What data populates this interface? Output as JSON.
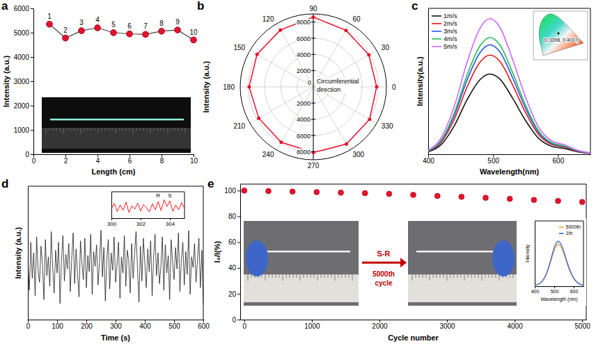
{
  "chart_data": [
    {
      "panel": "a",
      "type": "line",
      "x_label": "Length (cm)",
      "y_label": "Intensity (a.u.)",
      "x": [
        1,
        2,
        3,
        4,
        5,
        6,
        7,
        8,
        9,
        10
      ],
      "values": [
        5350,
        4780,
        5080,
        5200,
        5000,
        4950,
        4930,
        5060,
        5110,
        4700
      ],
      "point_labels": [
        "1",
        "2",
        "3",
        "4",
        "5",
        "6",
        "7",
        "8",
        "9",
        "10"
      ],
      "xlim": [
        0,
        10
      ],
      "ylim": [
        0,
        6000
      ],
      "xticks": [
        0,
        2,
        4,
        6,
        8,
        10
      ],
      "yticks": [
        0,
        1000,
        2000,
        3000,
        4000,
        5000,
        6000
      ],
      "color": "#e8112d",
      "marker": "circle"
    },
    {
      "panel": "b",
      "type": "polar",
      "r_label": "Intensity (a.u.)",
      "annotation": "Circumferential direction",
      "theta": [
        0,
        30,
        60,
        90,
        120,
        150,
        180,
        210,
        240,
        270,
        300,
        330
      ],
      "values": [
        7800,
        7900,
        8050,
        8600,
        8100,
        8000,
        7900,
        7750,
        7900,
        8100,
        8150,
        8000
      ],
      "rlim": [
        0,
        9000
      ],
      "rticks": [
        0,
        2000,
        4000,
        6000,
        8000
      ],
      "theta_ticks": [
        0,
        30,
        60,
        90,
        120,
        150,
        180,
        210,
        240,
        270,
        300,
        330
      ],
      "color": "#e8112d",
      "marker": "circle"
    },
    {
      "panel": "c",
      "type": "line",
      "x_label": "Wavelength(nm)",
      "y_label": "Intensity(a.u.)",
      "x": [
        400,
        420,
        440,
        460,
        480,
        495,
        510,
        530,
        550,
        570,
        590,
        610,
        630,
        650
      ],
      "series": [
        {
          "name": "1m/s",
          "color": "#111111",
          "values": [
            1.7,
            6.6,
            19.3,
            37.4,
            51.2,
            55,
            51.7,
            38.5,
            23.1,
            11,
            5.5,
            3.9,
            1.7,
            0.6
          ]
        },
        {
          "name": "2m/s",
          "color": "#ee1111",
          "values": [
            2,
            8.2,
            23.8,
            46.2,
            63.2,
            68,
            63.9,
            47.6,
            28.6,
            13.6,
            6.8,
            4.8,
            2,
            0.7
          ]
        },
        {
          "name": "3m/s",
          "color": "#2255ee",
          "values": [
            2.3,
            9,
            26.3,
            51,
            69.8,
            75,
            70.5,
            52.5,
            31.5,
            15,
            7.5,
            5.3,
            2.3,
            0.8
          ]
        },
        {
          "name": "4m/s",
          "color": "#22bb55",
          "values": [
            2.4,
            9.6,
            28,
            54.4,
            74.4,
            80,
            75.2,
            56,
            33.6,
            16,
            8,
            5.6,
            2.4,
            0.8
          ]
        },
        {
          "name": "5m/s",
          "color": "#cc66ff",
          "values": [
            2.8,
            11.2,
            32.6,
            63.2,
            86.5,
            93,
            87.4,
            65.1,
            39.1,
            18.6,
            9.3,
            6.5,
            2.8,
            0.9
          ]
        }
      ],
      "xlim": [
        400,
        650
      ],
      "ylim": [
        0,
        100
      ],
      "xticks": [
        400,
        500,
        600
      ],
      "tick_labels": "x",
      "legend": "top-left",
      "annotation": "(0.3398, 0.4037)"
    },
    {
      "panel": "d",
      "type": "line",
      "x_label": "Time (s)",
      "y_label": "Intensity (a.u.)",
      "x": [
        0,
        5,
        10,
        15,
        20,
        25,
        30,
        35,
        40,
        45,
        50,
        55,
        60,
        65,
        70,
        75,
        80,
        85,
        90,
        95,
        100,
        105,
        110,
        115,
        120,
        125,
        130,
        135,
        140,
        145,
        150,
        155,
        160,
        165,
        170,
        175,
        180,
        185,
        190,
        195,
        200,
        205,
        210,
        215,
        220,
        225,
        230,
        235,
        240,
        245,
        250,
        255,
        260,
        265,
        270,
        275,
        280,
        285,
        290,
        295,
        300,
        305,
        310,
        315,
        320,
        325,
        330,
        335,
        340,
        345,
        350,
        355,
        360,
        365,
        370,
        375,
        380,
        385,
        390,
        395,
        400,
        405,
        410,
        415,
        420,
        425,
        430,
        435,
        440,
        445,
        450,
        455,
        460,
        465,
        470,
        475,
        480,
        485,
        490,
        495,
        500,
        505,
        510,
        515,
        520,
        525,
        530,
        535,
        540,
        545,
        550,
        555,
        560,
        565,
        570,
        575,
        580,
        585,
        590,
        595,
        600
      ],
      "values": [
        45,
        22,
        58,
        31,
        50,
        18,
        62,
        37,
        28,
        55,
        41,
        15,
        60,
        33,
        47,
        25,
        66,
        39,
        20,
        52,
        35,
        58,
        12,
        44,
        63,
        29,
        49,
        38,
        57,
        21,
        46,
        65,
        27,
        53,
        34,
        17,
        59,
        42,
        30,
        61,
        24,
        48,
        36,
        64,
        19,
        51,
        40,
        56,
        26,
        43,
        67,
        32,
        54,
        14,
        45,
        60,
        23,
        50,
        37,
        62,
        28,
        41,
        58,
        16,
        47,
        35,
        63,
        25,
        52,
        44,
        20,
        57,
        31,
        49,
        66,
        38,
        13,
        55,
        29,
        61,
        42,
        24,
        53,
        36,
        59,
        18,
        46,
        64,
        33,
        50,
        27,
        40,
        62,
        22,
        56,
        35,
        48,
        15,
        60,
        43,
        30,
        54,
        38,
        65,
        21,
        45,
        58,
        26,
        51,
        34,
        67,
        19,
        47,
        39,
        57,
        28,
        44,
        61,
        24,
        52,
        11
      ],
      "xlim": [
        0,
        600
      ],
      "ylim": [
        0,
        100
      ],
      "xticks": [
        0,
        100,
        200,
        300,
        400,
        500,
        600
      ],
      "tick_labels": "x",
      "color": "#000000",
      "inset": {
        "type": "line",
        "x": [
          300,
          300.2,
          300.4,
          300.6,
          300.8,
          301,
          301.2,
          301.4,
          301.6,
          301.8,
          302,
          302.2,
          302.4,
          302.6,
          302.8,
          303,
          303.2,
          303.4,
          303.6,
          303.8,
          304,
          304.2,
          304.4,
          304.6,
          304.8,
          305
        ],
        "values": [
          50,
          78,
          35,
          70,
          42,
          85,
          30,
          66,
          48,
          80,
          38,
          72,
          55,
          33,
          76,
          45,
          88,
          40,
          97,
          62,
          92,
          36,
          70,
          44,
          82,
          52
        ],
        "xlim": [
          300,
          305
        ],
        "ylim": [
          0,
          140
        ],
        "xticks": [
          300,
          302,
          304
        ],
        "tick_labels": "x",
        "color": "#ff0000",
        "annotations": [
          {
            "text": "R",
            "x": 303.2,
            "y": 112
          },
          {
            "text": "S",
            "x": 304,
            "y": 112
          }
        ]
      }
    },
    {
      "panel": "e",
      "type": "scatter",
      "x_label": "Cycle number",
      "y_label": "I₀/I(%)",
      "x": [
        0,
        357,
        714,
        1071,
        1429,
        1786,
        2143,
        2500,
        2857,
        3214,
        3571,
        3929,
        4286,
        4643,
        5000
      ],
      "values": [
        100,
        99.6,
        99.2,
        98.8,
        98.4,
        98,
        97.4,
        96.7,
        95.9,
        95.2,
        94.4,
        93.6,
        92.8,
        92,
        91.2
      ],
      "xlim": [
        -60,
        5060
      ],
      "ylim": [
        0,
        105
      ],
      "xticks": [
        0,
        1000,
        2000,
        3000,
        4000,
        5000
      ],
      "yticks": [
        0,
        20,
        40,
        60,
        80,
        100
      ],
      "color": "#e8112d",
      "marker": "circle",
      "annotations": [
        "S-R",
        "5000th cycle"
      ],
      "inset": {
        "type": "line",
        "x_label": "Wavelength (nm)",
        "y_label": "Intensity",
        "x": [
          400,
          420,
          440,
          460,
          480,
          500,
          510,
          520,
          530,
          540,
          560,
          580,
          600,
          620,
          640,
          650
        ],
        "series": [
          {
            "name": "5000th",
            "color": "#f0a830",
            "values": [
              1.7,
              4.2,
              10.1,
              23.5,
              46.2,
              71.4,
              79.8,
              84,
              80.6,
              73.9,
              52.1,
              30.2,
              15.1,
              6.7,
              2.5,
              1.7
            ]
          },
          {
            "name": "1th",
            "color": "#3366dd",
            "values": [
              1.8,
              4.5,
              10.8,
              25.2,
              49.5,
              76.5,
              85.5,
              90,
              86.4,
              79.2,
              55.8,
              32.4,
              16.2,
              7.2,
              2.7,
              1.8
            ]
          }
        ],
        "xlim": [
          400,
          650
        ],
        "ylim": [
          0,
          130
        ],
        "xticks": [
          400,
          500,
          600
        ],
        "tick_labels": "x",
        "legend": "top-right"
      }
    }
  ]
}
